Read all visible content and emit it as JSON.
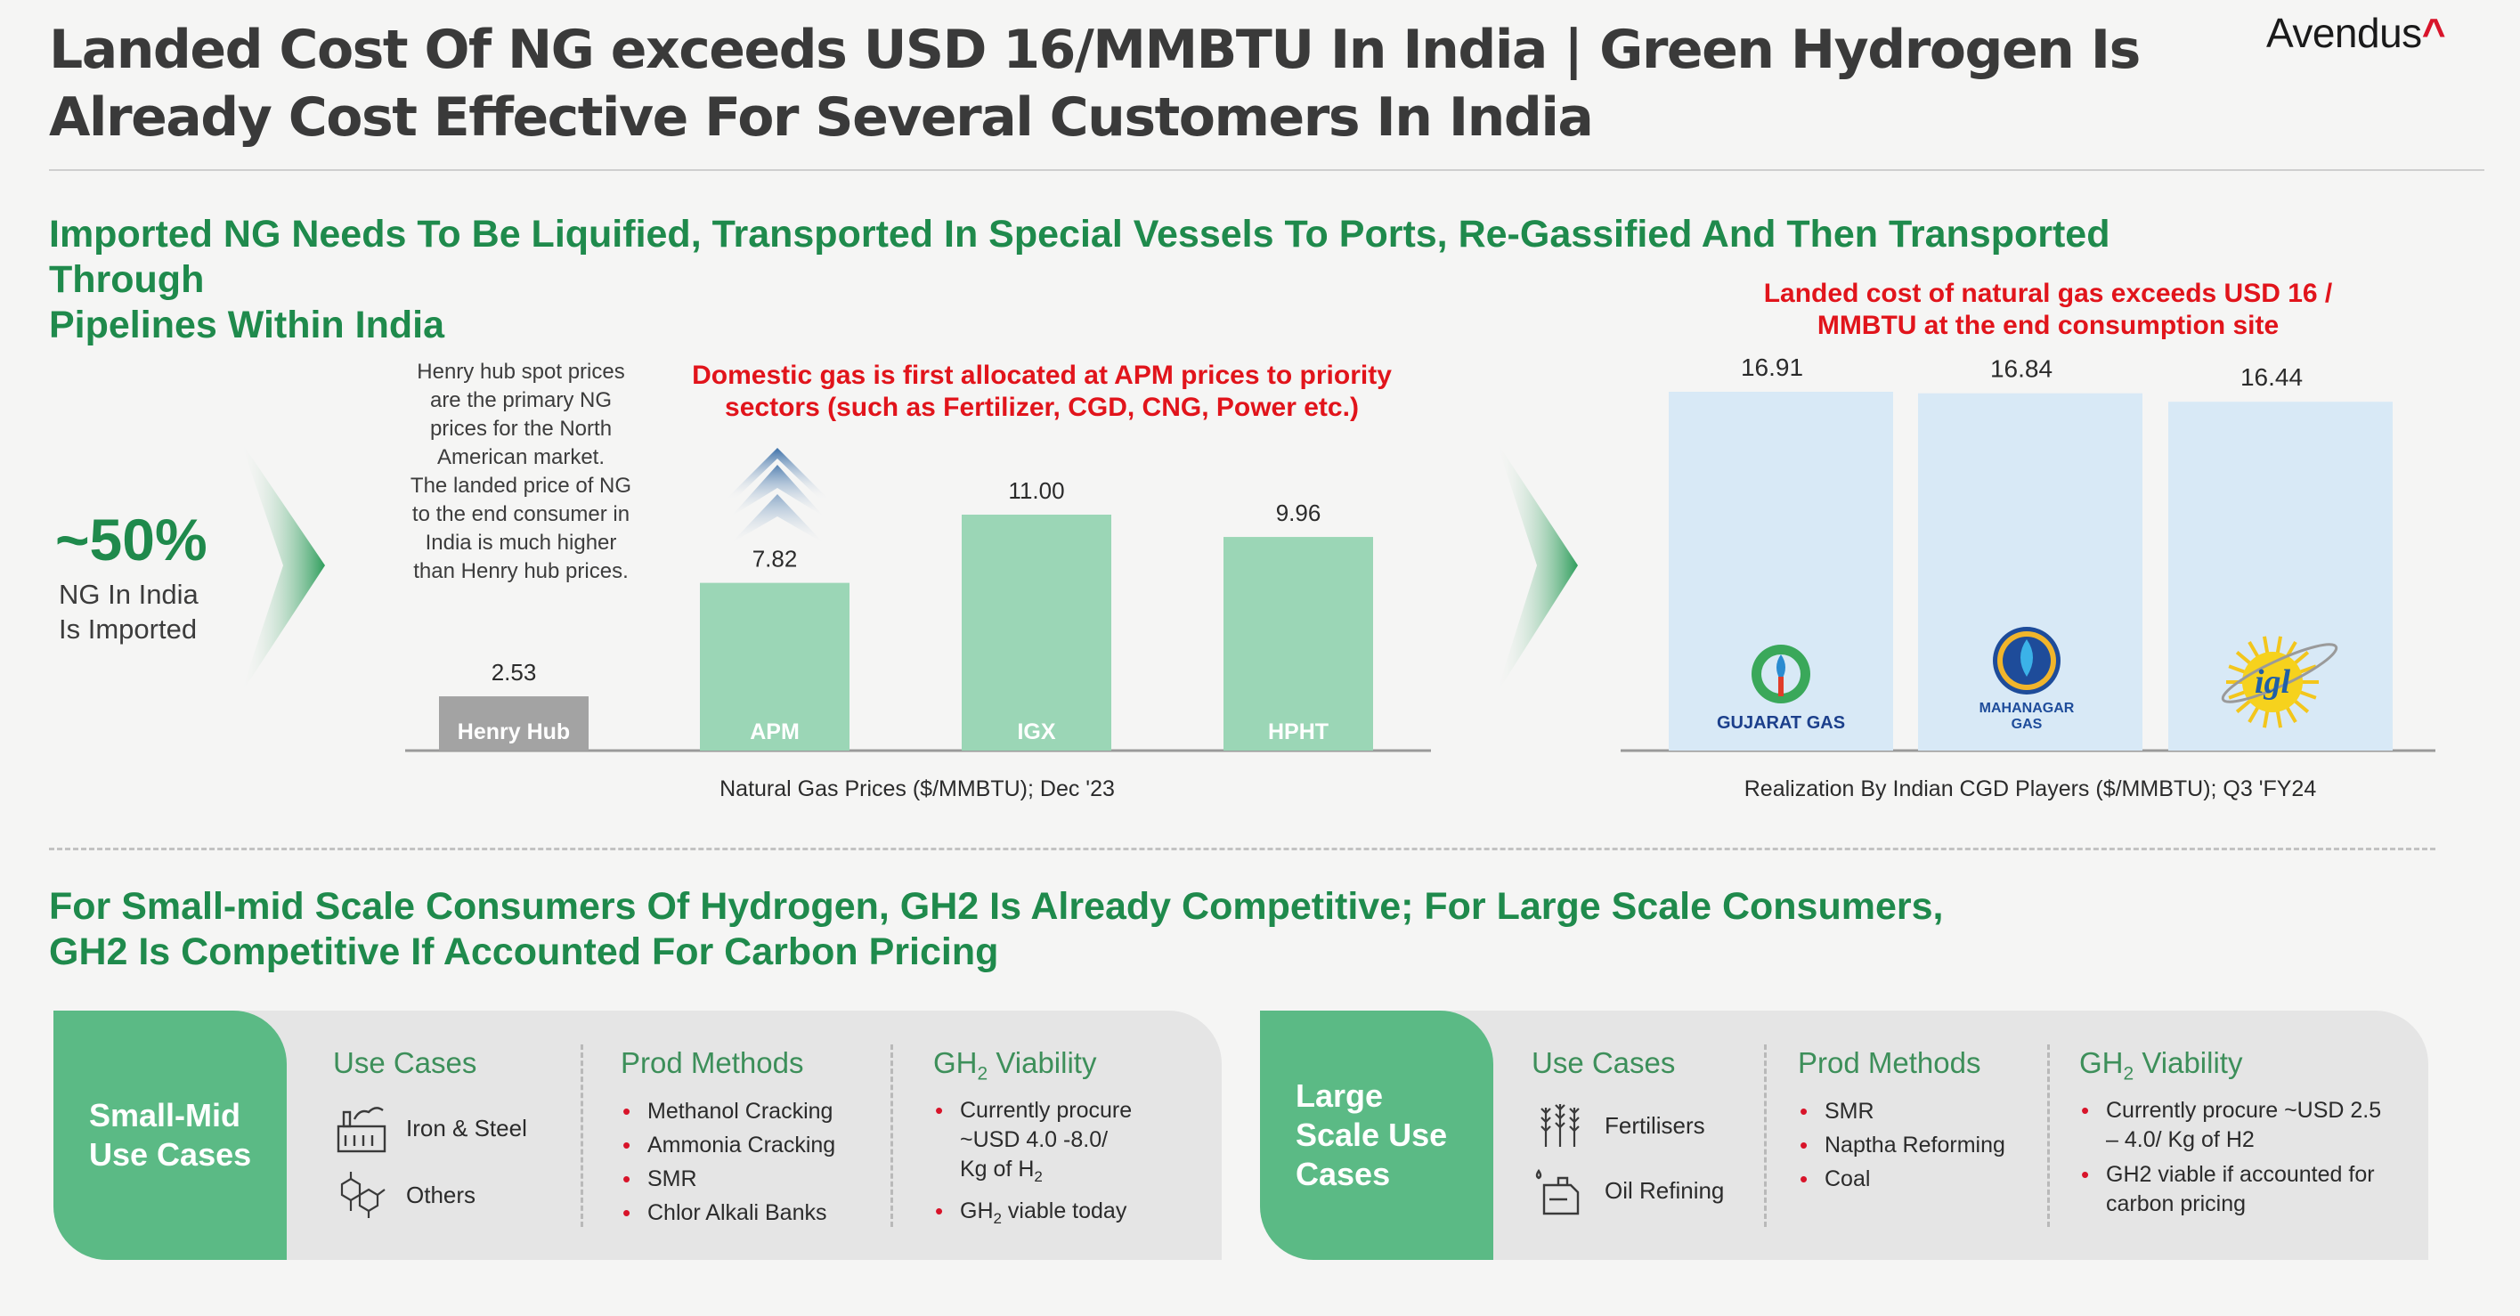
{
  "header": {
    "title_line1": "Landed Cost Of NG exceeds USD 16/MMBTU In India | Green Hydrogen Is",
    "title_line2": "Already Cost Effective For Several Customers In India",
    "logo_text": "Avendus",
    "logo_mark": "^"
  },
  "section1": {
    "heading_line1": "Imported NG Needs To Be Liquified, Transported In Special Vessels To Ports, Re-Gassified And Then Transported Through",
    "heading_line2": "Pipelines Within India",
    "stat_value": "~50%",
    "stat_line1": "NG In India",
    "stat_line2": "Is Imported",
    "henry_hub_note": [
      "Henry hub spot prices",
      "are the  primary NG",
      "prices for the North",
      "American market.",
      "The landed price of NG",
      "to the end consumer in",
      "India is much higher",
      "than Henry hub prices."
    ],
    "domestic_note_line1": "Domestic gas is first allocated at APM prices to priority",
    "domestic_note_line2": "sectors (such as Fertilizer, CGD, CNG, Power etc.)",
    "landed_note_line1": "Landed cost of natural gas exceeds USD 16 /",
    "landed_note_line2": "MMBTU at the end consumption site"
  },
  "colors": {
    "green_heading": "#1f8a4c",
    "bar_green": "#9bd6b6",
    "bar_gray": "#a3a3a3",
    "bar_light_blue": "#d8e9f6",
    "red_note": "#e1141b",
    "panel_tag": "#5bba85",
    "panel_bg": "#e5e5e5"
  },
  "chart_data": [
    {
      "type": "bar",
      "title": "Natural Gas Prices ($/MMBTU); Dec '23",
      "categories": [
        "Henry Hub",
        "APM",
        "IGX",
        "HPHT"
      ],
      "values": [
        2.53,
        7.82,
        11.0,
        9.96
      ],
      "value_labels": [
        "2.53",
        "7.82",
        "11.00",
        "9.96"
      ],
      "ylim": [
        0,
        11.0
      ],
      "xlabel": "",
      "ylabel": ""
    },
    {
      "type": "bar",
      "title": "Realization By Indian CGD Players ($/MMBTU); Q3 'FY24",
      "categories": [
        "GUJARAT GAS",
        "MAHANAGAR GAS",
        "igl"
      ],
      "category_sublines": [
        "",
        "GAS",
        ""
      ],
      "category_mainlines": [
        "GUJARAT GAS",
        "MAHANAGAR",
        "igl"
      ],
      "values": [
        16.91,
        16.84,
        16.44
      ],
      "value_labels": [
        "16.91",
        "16.84",
        "16.44"
      ],
      "ylim": [
        0,
        16.91
      ],
      "xlabel": "",
      "ylabel": ""
    }
  ],
  "section2": {
    "heading_line1": "For Small-mid Scale Consumers Of Hydrogen, GH2 Is Already Competitive; For Large Scale Consumers,",
    "heading_line2": "GH2 Is Competitive If Accounted For Carbon Pricing"
  },
  "panels": [
    {
      "tag_line1": "Small-Mid",
      "tag_line2": "Use Cases",
      "use_cases_title": "Use Cases",
      "use_cases": [
        "Iron & Steel",
        "Others"
      ],
      "prod_title": "Prod Methods",
      "prod_methods": [
        "Methanol Cracking",
        "Ammonia Cracking",
        "SMR",
        "Chlor Alkali Banks"
      ],
      "viability_title_pre": "GH",
      "viability_title_sub": "2",
      "viability_title_post": " Viability",
      "viability_1_line1": "Currently procure",
      "viability_1_line2": "~USD 4.0 -8.0/",
      "viability_1_line3_pre": "Kg of H",
      "viability_1_line3_sub": "2",
      "viability_2_pre": "GH",
      "viability_2_sub": "2",
      "viability_2_post": " viable today"
    },
    {
      "tag_line1": "Large",
      "tag_line2": "Scale Use",
      "tag_line3": "Cases",
      "use_cases_title": "Use Cases",
      "use_cases": [
        "Fertilisers",
        "Oil Refining"
      ],
      "prod_title": "Prod Methods",
      "prod_methods": [
        "SMR",
        "Naptha Reforming",
        "Coal"
      ],
      "viability_title_pre": "GH",
      "viability_title_sub": "2",
      "viability_title_post": " Viability",
      "viability_1_line1": "Currently procure ~USD 2.5",
      "viability_1_line2": "– 4.0/ Kg of H2",
      "viability_2_line1": "GH2 viable if accounted for",
      "viability_2_line2": "carbon pricing"
    }
  ]
}
